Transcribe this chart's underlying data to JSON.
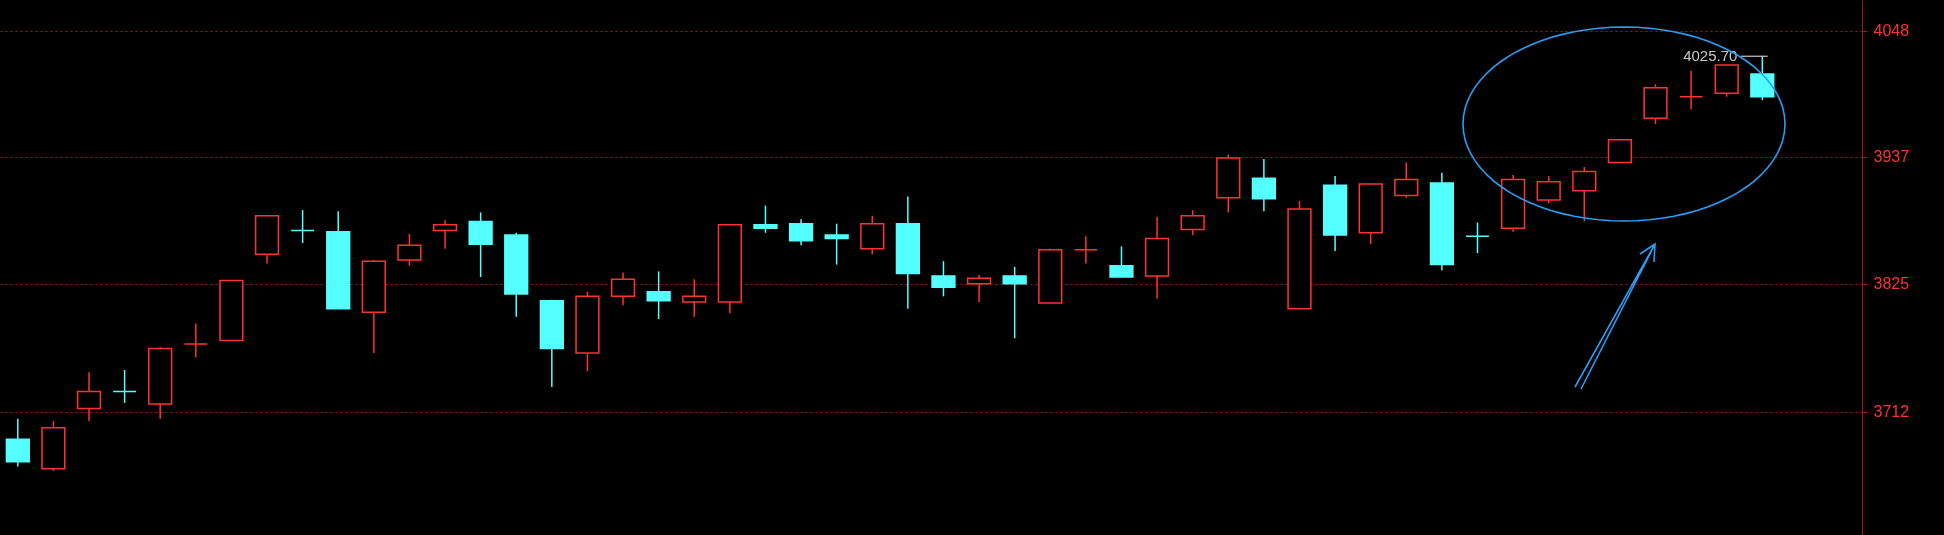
{
  "chart_data": {
    "type": "candlestick",
    "categories": [
      null,
      null,
      null,
      null,
      null,
      null,
      null,
      null,
      null,
      null,
      null,
      null,
      null,
      null,
      null,
      null,
      null,
      null,
      null,
      null,
      null,
      null,
      null,
      null,
      null,
      null,
      null,
      null,
      null,
      null,
      null,
      null,
      null,
      null,
      null,
      null,
      null,
      null,
      null,
      null,
      null,
      null,
      null,
      null,
      null,
      null,
      null,
      null,
      null,
      null
    ],
    "ohlc": [
      [
        3688,
        3706,
        3664,
        3668
      ],
      [
        3662,
        3704,
        3660,
        3698
      ],
      [
        3715,
        3747,
        3704,
        3730
      ],
      [
        3730,
        3749,
        3720,
        3730
      ],
      [
        3719,
        3769,
        3706,
        3768
      ],
      [
        3772,
        3790,
        3760,
        3772
      ],
      [
        3775,
        3828,
        3775,
        3828
      ],
      [
        3851,
        3885,
        3843,
        3885
      ],
      [
        3872,
        3890,
        3861,
        3872
      ],
      [
        3871,
        3889,
        3803,
        3803
      ],
      [
        3800,
        3846,
        3764,
        3845
      ],
      [
        3846,
        3869,
        3841,
        3859
      ],
      [
        3872,
        3881,
        3856,
        3877
      ],
      [
        3880,
        3888,
        3831,
        3860
      ],
      [
        3868,
        3870,
        3796,
        3816
      ],
      [
        3810,
        3811,
        3734,
        3768
      ],
      [
        3764,
        3818,
        3748,
        3814
      ],
      [
        3814,
        3835,
        3806,
        3829
      ],
      [
        3818,
        3836,
        3794,
        3810
      ],
      [
        3809,
        3829,
        3796,
        3814
      ],
      [
        3809,
        3877,
        3799,
        3877
      ],
      [
        3877,
        3894,
        3870,
        3874
      ],
      [
        3878,
        3882,
        3859,
        3863
      ],
      [
        3868,
        3878,
        3842,
        3865
      ],
      [
        3856,
        3885,
        3851,
        3878
      ],
      [
        3878,
        3902,
        3803,
        3834
      ],
      [
        3832,
        3845,
        3814,
        3822
      ],
      [
        3825,
        3833,
        3809,
        3830
      ],
      [
        3832,
        3840,
        3777,
        3825
      ],
      [
        3808,
        3856,
        3808,
        3855
      ],
      [
        3855,
        3867,
        3843,
        3855
      ],
      [
        3841,
        3858,
        3831,
        3831
      ],
      [
        3832,
        3884,
        3812,
        3865
      ],
      [
        3873,
        3890,
        3868,
        3885
      ],
      [
        3901,
        3939,
        3888,
        3936
      ],
      [
        3918,
        3935,
        3889,
        3900
      ],
      [
        3803,
        3898,
        3803,
        3891
      ],
      [
        3912,
        3920,
        3854,
        3868
      ],
      [
        3870,
        3913,
        3860,
        3913
      ],
      [
        3903,
        3932,
        3901,
        3917
      ],
      [
        3914,
        3923,
        3837,
        3842
      ],
      [
        3867,
        3879,
        3852,
        3867
      ],
      [
        3874,
        3921,
        3871,
        3917
      ],
      [
        3899,
        3920,
        3896,
        3915
      ],
      [
        3907,
        3928,
        3880,
        3924
      ],
      [
        3932,
        3952,
        3932,
        3952
      ],
      [
        3971,
        4001,
        3966,
        3998
      ],
      [
        3990,
        4013,
        3979,
        3990
      ],
      [
        3993,
        4018,
        3990,
        4018
      ],
      [
        4010,
        4025.7,
        3987,
        3990
      ]
    ],
    "colors": [
      "#54ffff",
      "#ff3232",
      "#ff3232",
      "#54ffff",
      "#ff3232",
      "#ff3232",
      "#ff3232",
      "#ff3232",
      "#54ffff",
      "#54ffff",
      "#ff3232",
      "#ff3232",
      "#ff3232",
      "#54ffff",
      "#54ffff",
      "#54ffff",
      "#ff3232",
      "#ff3232",
      "#54ffff",
      "#ff3232",
      "#ff3232",
      "#54ffff",
      "#54ffff",
      "#54ffff",
      "#ff3232",
      "#54ffff",
      "#54ffff",
      "#ff3232",
      "#54ffff",
      "#ff3232",
      "#ff3232",
      "#54ffff",
      "#ff3232",
      "#ff3232",
      "#ff3232",
      "#54ffff",
      "#ff3232",
      "#54ffff",
      "#ff3232",
      "#ff3232",
      "#54ffff",
      "#54ffff",
      "#ff3232",
      "#ff3232",
      "#ff3232",
      "#ff3232",
      "#ff3232",
      "#ff3232",
      "#ff3232",
      "#54ffff"
    ],
    "ylim": [
      3603.5,
      4075.3
    ],
    "yticks": [
      3712,
      3825,
      3937,
      4048
    ],
    "grid": "y",
    "annotations": [
      "4025.70"
    ]
  }
}
